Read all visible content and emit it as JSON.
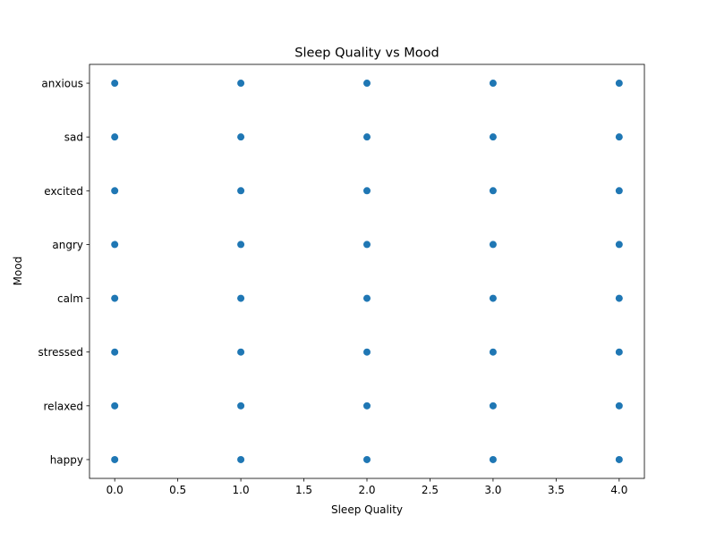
{
  "chart_data": {
    "type": "scatter",
    "title": "Sleep Quality vs Mood",
    "xlabel": "Sleep Quality",
    "ylabel": "Mood",
    "xlim": [
      -0.2,
      4.2
    ],
    "x_ticks": [
      0.0,
      0.5,
      1.0,
      1.5,
      2.0,
      2.5,
      3.0,
      3.5,
      4.0
    ],
    "x_tick_labels": [
      "0.0",
      "0.5",
      "1.0",
      "1.5",
      "2.0",
      "2.5",
      "3.0",
      "3.5",
      "4.0"
    ],
    "y_categories": [
      "happy",
      "relaxed",
      "stressed",
      "calm",
      "angry",
      "excited",
      "sad",
      "anxious"
    ],
    "grid": false,
    "marker_color": "#1f77b4",
    "points": [
      {
        "x": 0,
        "y": "anxious"
      },
      {
        "x": 1,
        "y": "anxious"
      },
      {
        "x": 2,
        "y": "anxious"
      },
      {
        "x": 3,
        "y": "anxious"
      },
      {
        "x": 4,
        "y": "anxious"
      },
      {
        "x": 0,
        "y": "sad"
      },
      {
        "x": 1,
        "y": "sad"
      },
      {
        "x": 2,
        "y": "sad"
      },
      {
        "x": 3,
        "y": "sad"
      },
      {
        "x": 4,
        "y": "sad"
      },
      {
        "x": 0,
        "y": "excited"
      },
      {
        "x": 1,
        "y": "excited"
      },
      {
        "x": 2,
        "y": "excited"
      },
      {
        "x": 3,
        "y": "excited"
      },
      {
        "x": 4,
        "y": "excited"
      },
      {
        "x": 0,
        "y": "angry"
      },
      {
        "x": 1,
        "y": "angry"
      },
      {
        "x": 2,
        "y": "angry"
      },
      {
        "x": 3,
        "y": "angry"
      },
      {
        "x": 4,
        "y": "angry"
      },
      {
        "x": 0,
        "y": "calm"
      },
      {
        "x": 1,
        "y": "calm"
      },
      {
        "x": 2,
        "y": "calm"
      },
      {
        "x": 3,
        "y": "calm"
      },
      {
        "x": 4,
        "y": "calm"
      },
      {
        "x": 0,
        "y": "stressed"
      },
      {
        "x": 1,
        "y": "stressed"
      },
      {
        "x": 2,
        "y": "stressed"
      },
      {
        "x": 3,
        "y": "stressed"
      },
      {
        "x": 4,
        "y": "stressed"
      },
      {
        "x": 0,
        "y": "relaxed"
      },
      {
        "x": 1,
        "y": "relaxed"
      },
      {
        "x": 2,
        "y": "relaxed"
      },
      {
        "x": 3,
        "y": "relaxed"
      },
      {
        "x": 4,
        "y": "relaxed"
      },
      {
        "x": 0,
        "y": "happy"
      },
      {
        "x": 1,
        "y": "happy"
      },
      {
        "x": 2,
        "y": "happy"
      },
      {
        "x": 3,
        "y": "happy"
      },
      {
        "x": 4,
        "y": "happy"
      }
    ]
  }
}
